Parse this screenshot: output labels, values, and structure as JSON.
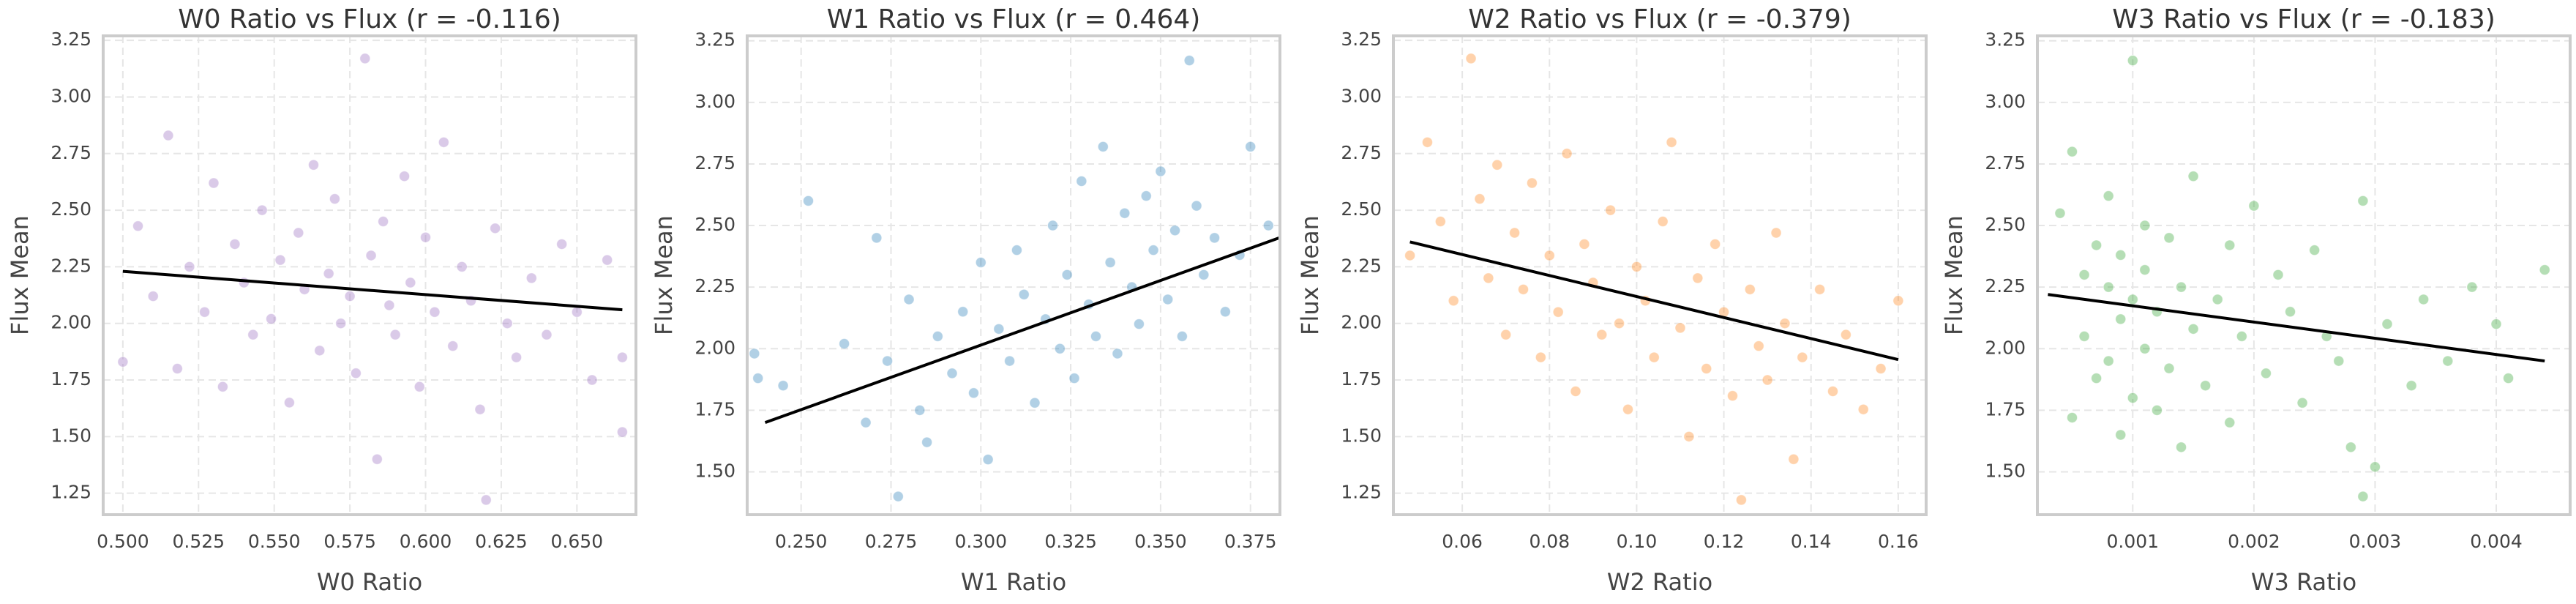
{
  "chart_data": [
    {
      "type": "scatter",
      "title": "W0 Ratio vs Flux (r = -0.116)",
      "x_label": "W0 Ratio",
      "y_label": "Flux Mean",
      "color": "#9467bd",
      "grid": true,
      "xlim": [
        0.4935,
        0.6695
      ],
      "ylim": [
        1.155,
        3.27
      ],
      "xticks": [
        {
          "value": 0.5,
          "label": "0.500"
        },
        0.525,
        {
          "value": 0.55,
          "label": "0.550"
        },
        0.575,
        {
          "value": 0.6,
          "label": "0.600"
        },
        0.625,
        {
          "value": 0.65,
          "label": "0.650"
        }
      ],
      "yticks": [
        1.25,
        {
          "value": 1.5,
          "label": "1.50"
        },
        1.75,
        {
          "value": 2,
          "label": "2.00"
        },
        2.25,
        {
          "value": 2.5,
          "label": "2.50"
        },
        2.75,
        {
          "value": 3,
          "label": "3.00"
        },
        3.25
      ],
      "x": [
        0.5,
        0.505,
        0.51,
        0.515,
        0.518,
        0.522,
        0.527,
        0.53,
        0.533,
        0.537,
        0.54,
        0.543,
        0.546,
        0.549,
        0.552,
        0.555,
        0.558,
        0.56,
        0.563,
        0.565,
        0.568,
        0.57,
        0.572,
        0.575,
        0.577,
        0.58,
        0.582,
        0.584,
        0.586,
        0.588,
        0.59,
        0.593,
        0.595,
        0.598,
        0.6,
        0.603,
        0.606,
        0.609,
        0.612,
        0.615,
        0.618,
        0.62,
        0.623,
        0.627,
        0.63,
        0.635,
        0.64,
        0.645,
        0.65,
        0.655,
        0.66,
        0.665,
        0.665
      ],
      "values": [
        1.83,
        2.43,
        2.12,
        2.83,
        1.8,
        2.25,
        2.05,
        2.62,
        1.72,
        2.35,
        2.18,
        1.95,
        2.5,
        2.02,
        2.28,
        1.65,
        2.4,
        2.15,
        2.7,
        1.88,
        2.22,
        2.55,
        2.0,
        2.12,
        1.78,
        3.17,
        2.3,
        1.4,
        2.45,
        2.08,
        1.95,
        2.65,
        2.18,
        1.72,
        2.38,
        2.05,
        2.8,
        1.9,
        2.25,
        2.1,
        1.62,
        1.22,
        2.42,
        2.0,
        1.85,
        2.2,
        1.95,
        2.35,
        2.05,
        1.75,
        2.28,
        1.52,
        1.85
      ],
      "fit": {
        "color": "#000000",
        "x": [
          0.5,
          0.665
        ],
        "values": [
          2.23,
          2.06
        ]
      }
    },
    {
      "type": "scatter",
      "title": "W1 Ratio vs Flux (r = 0.464)",
      "x_label": "W1 Ratio",
      "y_label": "Flux Mean",
      "color": "#1f77b4",
      "grid": true,
      "xlim": [
        0.235,
        0.3832
      ],
      "ylim": [
        1.326,
        3.27
      ],
      "xticks": [
        {
          "value": 0.25,
          "label": "0.250"
        },
        0.275,
        {
          "value": 0.3,
          "label": "0.300"
        },
        0.325,
        {
          "value": 0.35,
          "label": "0.350"
        },
        0.375
      ],
      "yticks": [
        {
          "value": 1.5,
          "label": "1.50"
        },
        1.75,
        {
          "value": 2,
          "label": "2.00"
        },
        2.25,
        {
          "value": 2.5,
          "label": "2.50"
        },
        2.75,
        {
          "value": 3,
          "label": "3.00"
        },
        3.25
      ],
      "x": [
        0.237,
        0.238,
        0.245,
        0.252,
        0.262,
        0.268,
        0.271,
        0.274,
        0.277,
        0.28,
        0.283,
        0.285,
        0.288,
        0.292,
        0.295,
        0.298,
        0.3,
        0.302,
        0.305,
        0.308,
        0.31,
        0.312,
        0.315,
        0.318,
        0.32,
        0.322,
        0.324,
        0.326,
        0.328,
        0.33,
        0.332,
        0.334,
        0.336,
        0.338,
        0.34,
        0.342,
        0.344,
        0.346,
        0.348,
        0.35,
        0.352,
        0.354,
        0.356,
        0.358,
        0.36,
        0.362,
        0.365,
        0.368,
        0.372,
        0.375,
        0.38
      ],
      "values": [
        1.98,
        1.88,
        1.85,
        2.6,
        2.02,
        1.7,
        2.45,
        1.95,
        1.4,
        2.2,
        1.75,
        1.62,
        2.05,
        1.9,
        2.15,
        1.82,
        2.35,
        1.55,
        2.08,
        1.95,
        2.4,
        2.22,
        1.78,
        2.12,
        2.5,
        2.0,
        2.3,
        1.88,
        2.68,
        2.18,
        2.05,
        2.82,
        2.35,
        1.98,
        2.55,
        2.25,
        2.1,
        2.62,
        2.4,
        2.72,
        2.2,
        2.48,
        2.05,
        3.17,
        2.58,
        2.3,
        2.45,
        2.15,
        2.38,
        2.82,
        2.5
      ],
      "fit": {
        "color": "#000000",
        "x": [
          0.24,
          0.383
        ],
        "values": [
          1.7,
          2.45
        ]
      }
    },
    {
      "type": "scatter",
      "title": "W2 Ratio vs Flux (r = -0.379)",
      "x_label": "W2 Ratio",
      "y_label": "Flux Mean",
      "color": "#ff7f0e",
      "grid": true,
      "xlim": [
        0.0442,
        0.1664
      ],
      "ylim": [
        1.155,
        3.27
      ],
      "xticks": [
        0.06,
        0.08,
        {
          "value": 0.1,
          "label": "0.10"
        },
        0.12,
        0.14,
        0.16
      ],
      "yticks": [
        1.25,
        {
          "value": 1.5,
          "label": "1.50"
        },
        1.75,
        {
          "value": 2,
          "label": "2.00"
        },
        2.25,
        {
          "value": 2.5,
          "label": "2.50"
        },
        2.75,
        {
          "value": 3,
          "label": "3.00"
        },
        3.25
      ],
      "x": [
        0.048,
        0.052,
        0.055,
        0.058,
        0.062,
        0.064,
        0.066,
        0.068,
        0.07,
        0.072,
        0.074,
        0.076,
        0.078,
        0.08,
        0.082,
        0.084,
        0.086,
        0.088,
        0.09,
        0.092,
        0.094,
        0.096,
        0.098,
        0.1,
        0.102,
        0.104,
        0.106,
        0.108,
        0.11,
        0.112,
        0.114,
        0.116,
        0.118,
        0.12,
        0.122,
        0.124,
        0.126,
        0.128,
        0.13,
        0.132,
        0.134,
        0.136,
        0.138,
        0.142,
        0.145,
        0.148,
        0.152,
        0.156,
        0.16
      ],
      "values": [
        2.3,
        2.8,
        2.45,
        2.1,
        3.17,
        2.55,
        2.2,
        2.7,
        1.95,
        2.4,
        2.15,
        2.62,
        1.85,
        2.3,
        2.05,
        2.75,
        1.7,
        2.35,
        2.18,
        1.95,
        2.5,
        2.0,
        1.62,
        2.25,
        2.1,
        1.85,
        2.45,
        2.8,
        1.98,
        1.5,
        2.2,
        1.8,
        2.35,
        2.05,
        1.68,
        1.22,
        2.15,
        1.9,
        1.75,
        2.4,
        2.0,
        1.4,
        1.85,
        2.15,
        1.7,
        1.95,
        1.62,
        1.8,
        2.1
      ],
      "fit": {
        "color": "#000000",
        "x": [
          0.048,
          0.16
        ],
        "values": [
          2.36,
          1.84
        ]
      }
    },
    {
      "type": "scatter",
      "title": "W3 Ratio vs Flux (r = -0.183)",
      "x_label": "W3 Ratio",
      "y_label": "Flux Mean",
      "color": "#2ca02c",
      "grid": true,
      "xlim": [
        0.000213,
        0.00461
      ],
      "ylim": [
        1.326,
        3.27
      ],
      "xticks": [
        0.001,
        0.002,
        0.003,
        0.004
      ],
      "yticks": [
        {
          "value": 1.5,
          "label": "1.50"
        },
        1.75,
        {
          "value": 2,
          "label": "2.00"
        },
        2.25,
        {
          "value": 2.5,
          "label": "2.50"
        },
        2.75,
        {
          "value": 3,
          "label": "3.00"
        },
        3.25
      ],
      "x": [
        0.0004,
        0.0005,
        0.0005,
        0.0006,
        0.0006,
        0.0007,
        0.0007,
        0.0008,
        0.0008,
        0.0008,
        0.0009,
        0.0009,
        0.0009,
        0.001,
        0.001,
        0.001,
        0.0011,
        0.0011,
        0.0011,
        0.0012,
        0.0012,
        0.0013,
        0.0013,
        0.0014,
        0.0014,
        0.0015,
        0.0015,
        0.0016,
        0.0017,
        0.0018,
        0.0018,
        0.0019,
        0.002,
        0.0021,
        0.0022,
        0.0023,
        0.0024,
        0.0025,
        0.0026,
        0.0027,
        0.0028,
        0.0029,
        0.0029,
        0.003,
        0.0031,
        0.0033,
        0.0034,
        0.0036,
        0.0038,
        0.004,
        0.0041,
        0.0044
      ],
      "values": [
        2.55,
        2.8,
        1.72,
        2.3,
        2.05,
        2.42,
        1.88,
        2.25,
        2.62,
        1.95,
        2.38,
        2.12,
        1.65,
        3.17,
        2.2,
        1.8,
        2.5,
        2.0,
        2.32,
        1.75,
        2.15,
        2.45,
        1.92,
        2.25,
        1.6,
        2.08,
        2.7,
        1.85,
        2.2,
        2.42,
        1.7,
        2.05,
        2.58,
        1.9,
        2.3,
        2.15,
        1.78,
        2.4,
        2.05,
        1.95,
        1.6,
        2.6,
        1.4,
        1.52,
        2.1,
        1.85,
        2.2,
        1.95,
        2.25,
        2.1,
        1.88,
        2.32
      ],
      "fit": {
        "color": "#000000",
        "x": [
          0.0003,
          0.0044
        ],
        "values": [
          2.22,
          1.95
        ]
      }
    }
  ]
}
